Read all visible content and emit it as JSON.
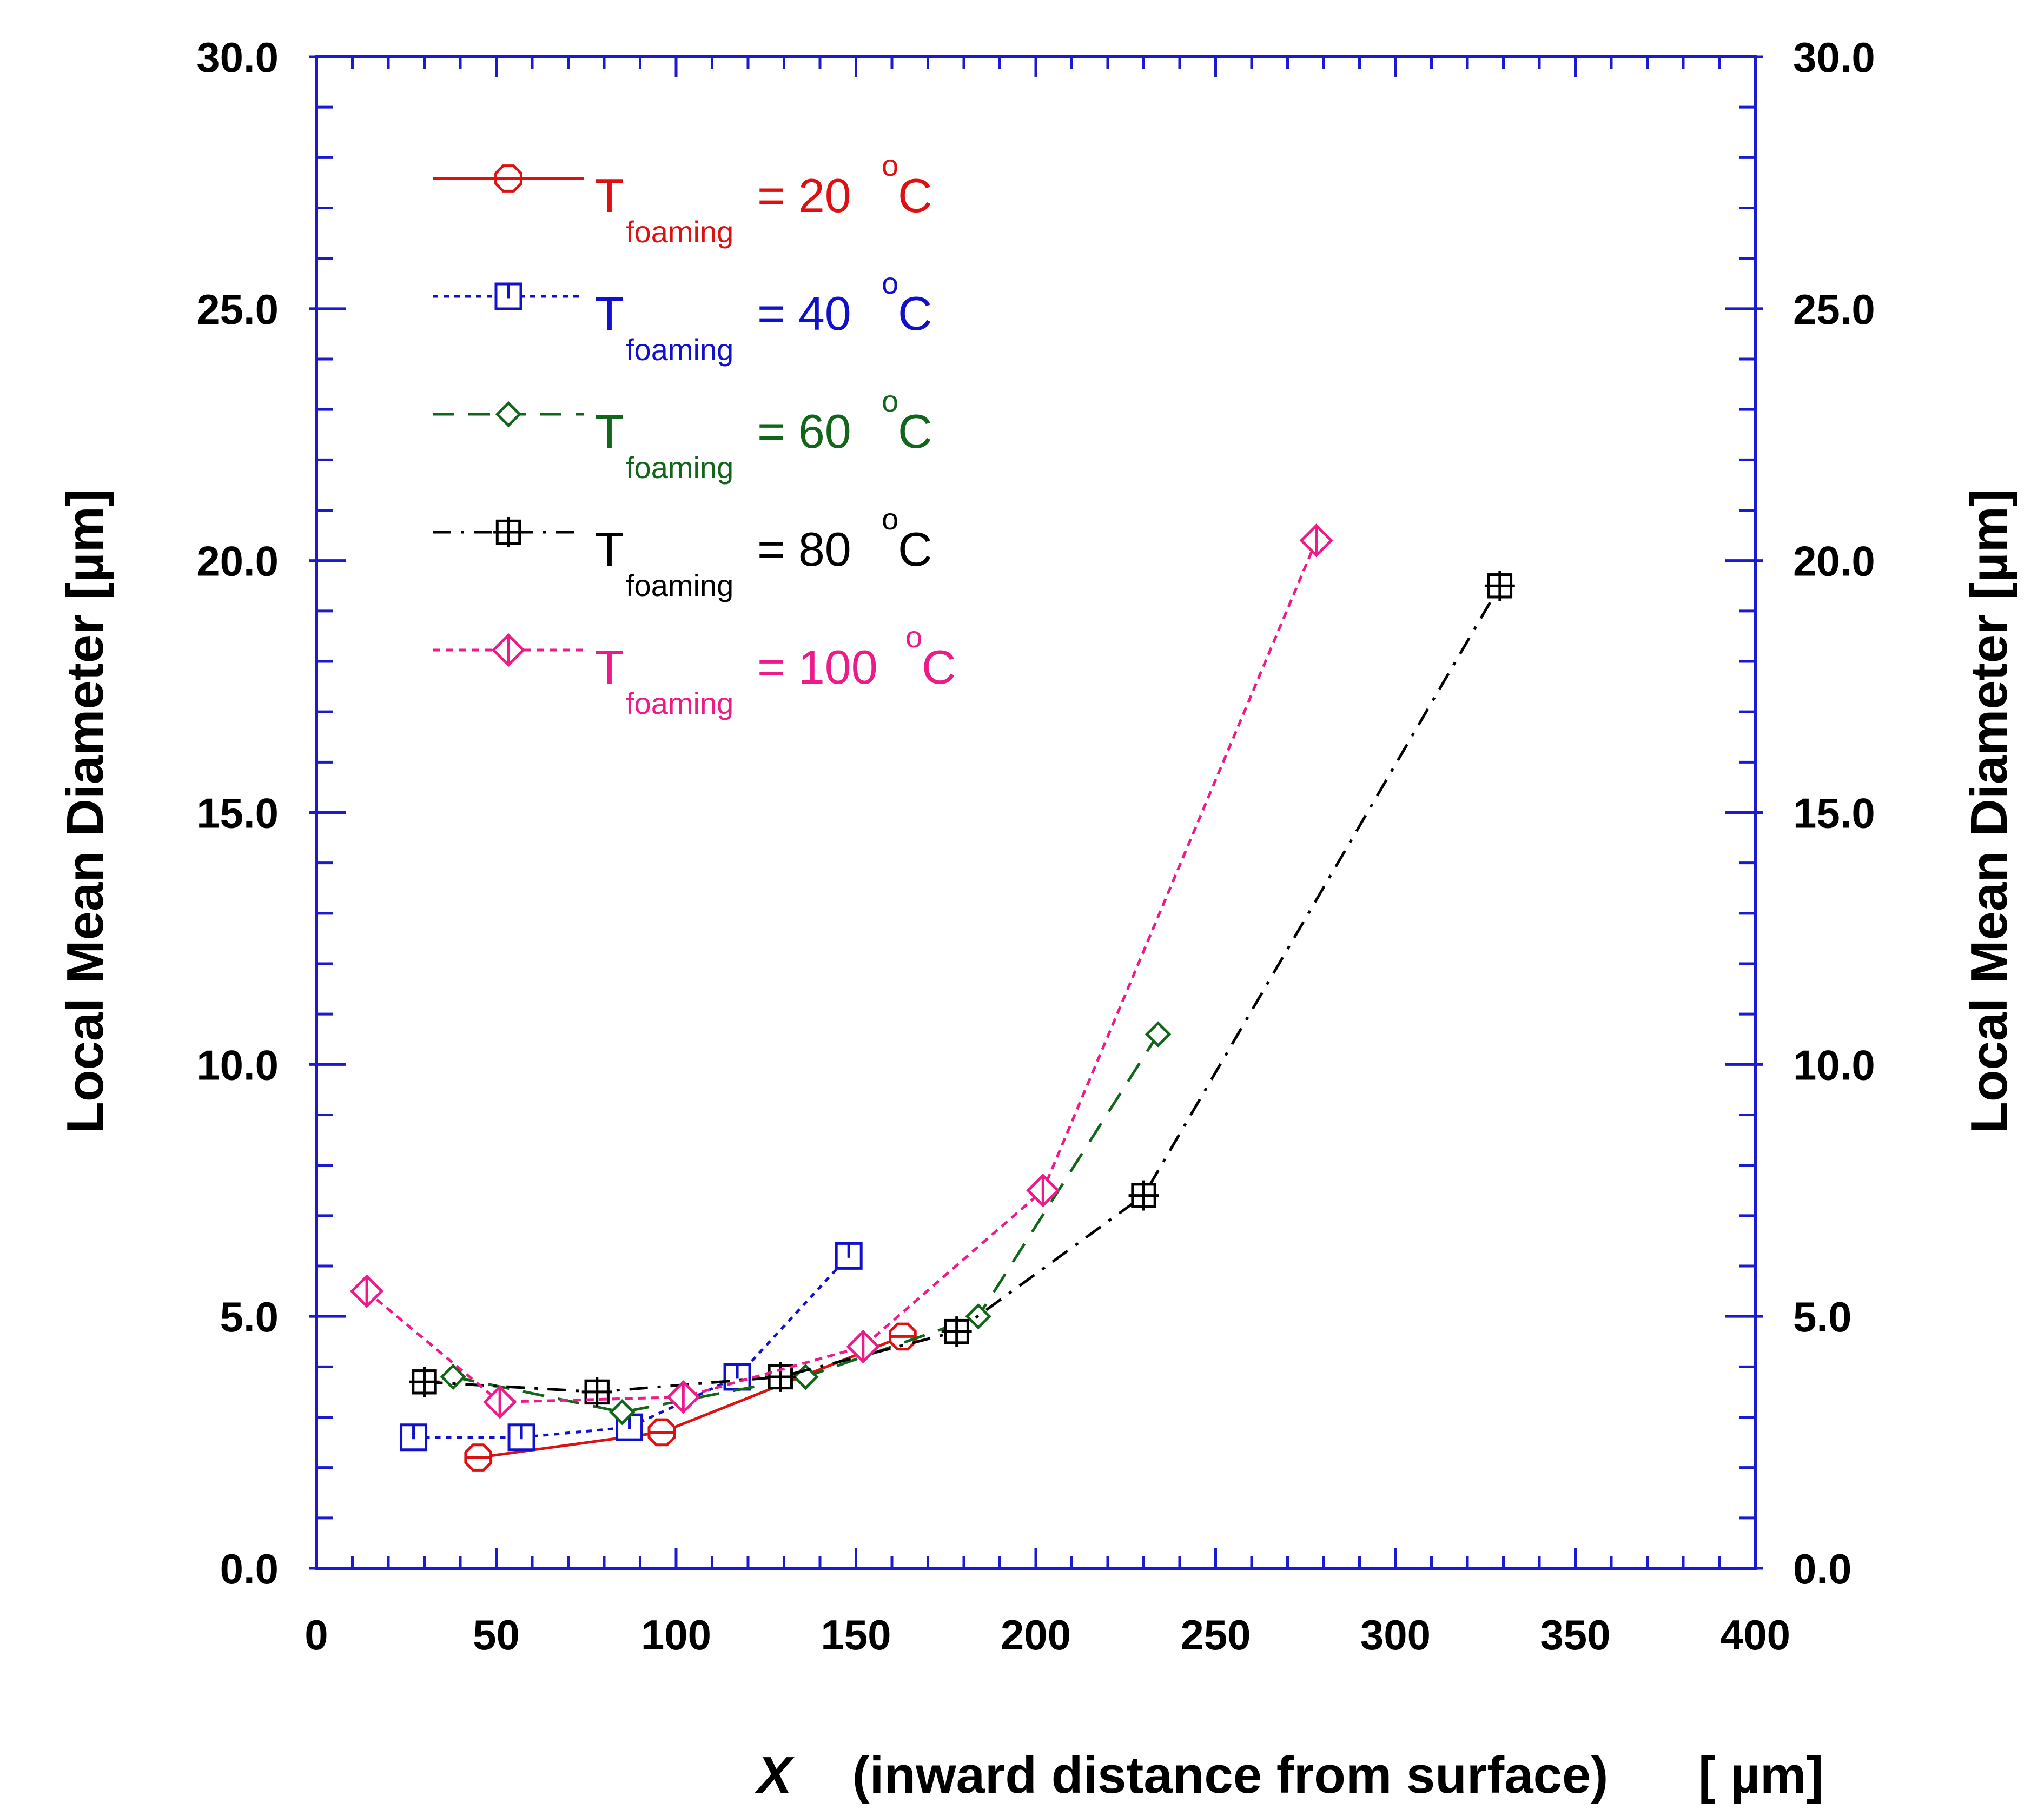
{
  "chart_data": {
    "type": "line",
    "title": "",
    "xlabel": {
      "symbol": "X",
      "text": "(inward distance from surface)",
      "unit": "[  µm]"
    },
    "ylabel_left": "Local Mean Diameter   [µm]",
    "ylabel_right": "Local Mean Diameter   [µm]",
    "xlim": [
      0,
      400
    ],
    "ylim": [
      0,
      30
    ],
    "x_ticks": [
      0,
      50,
      100,
      150,
      200,
      250,
      300,
      350,
      400
    ],
    "x_tick_labels": [
      "0",
      "50",
      "100",
      "150",
      "200",
      "250",
      "300",
      "350",
      "400"
    ],
    "y_ticks": [
      0,
      5,
      10,
      15,
      20,
      25,
      30
    ],
    "y_tick_labels": [
      "0.0",
      "5.0",
      "10.0",
      "15.0",
      "20.0",
      "25.0",
      "30.0"
    ],
    "grid": false,
    "legend_position": "top-left",
    "series": [
      {
        "name": "T_foaming = 20 °C",
        "legend": {
          "main": "T",
          "sub": "foaming",
          "eq": "=  20",
          "sup": "o",
          "unit": "C"
        },
        "color": "#dd1111",
        "marker": "octagon",
        "line": "solid",
        "x": [
          45,
          96,
          163
        ],
        "y": [
          2.2,
          2.7,
          4.6
        ]
      },
      {
        "name": "T_foaming = 40 °C",
        "legend": {
          "main": "T",
          "sub": "foaming",
          "eq": "=  40",
          "sup": "o",
          "unit": "C"
        },
        "color": "#1111cc",
        "marker": "square-tick",
        "line": "dotted",
        "x": [
          27,
          57,
          87,
          117,
          148
        ],
        "y": [
          2.6,
          2.6,
          2.8,
          3.8,
          6.2
        ]
      },
      {
        "name": "T_foaming = 60 °C",
        "legend": {
          "main": "T",
          "sub": "foaming",
          "eq": "=  60",
          "sup": "o",
          "unit": "C"
        },
        "color": "#11661a",
        "marker": "diamond",
        "line": "dashed",
        "x": [
          38,
          85,
          136,
          184,
          234
        ],
        "y": [
          3.8,
          3.1,
          3.8,
          5.0,
          10.6
        ]
      },
      {
        "name": "T_foaming = 80 °C",
        "legend": {
          "main": "T",
          "sub": "foaming",
          "eq": "=  80",
          "sup": "o",
          "unit": "C"
        },
        "color": "#000000",
        "marker": "hash-square",
        "line": "dash-dot",
        "x": [
          30,
          78,
          129,
          178,
          230,
          329
        ],
        "y": [
          3.7,
          3.5,
          3.8,
          4.7,
          7.4,
          19.5
        ]
      },
      {
        "name": "T_foaming = 100 °C",
        "legend": {
          "main": "T",
          "sub": "foaming",
          "eq": "=  100",
          "sup": "o",
          "unit": "C"
        },
        "color": "#ee1a8a",
        "marker": "diamond-cross",
        "line": "short-dash",
        "x": [
          14,
          51,
          102,
          152,
          202,
          278
        ],
        "y": [
          5.5,
          3.3,
          3.4,
          4.4,
          7.5,
          20.4
        ]
      }
    ]
  },
  "colors": {
    "frame": "#1a1ad0",
    "text": "#000000"
  }
}
